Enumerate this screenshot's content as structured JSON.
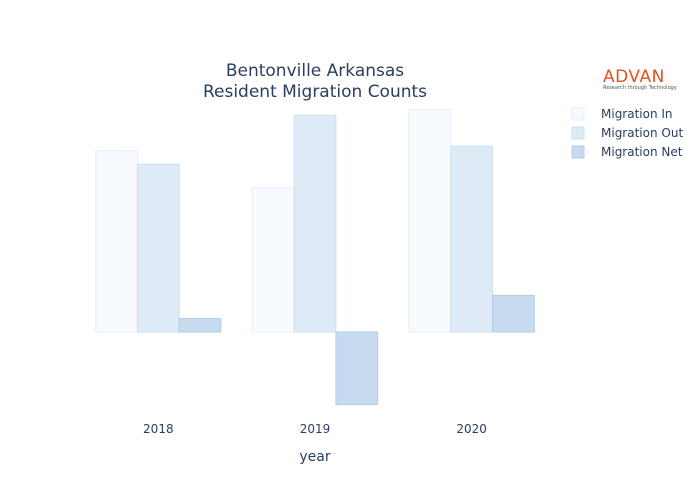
{
  "logo": {
    "name": "ADVAN",
    "tagline": "Research through Technology",
    "color": "#e2531e"
  },
  "chart_data": {
    "type": "bar",
    "title_lines": [
      "Bentonville Arkansas",
      "Resident Migration Counts"
    ],
    "xlabel": "year",
    "ylabel": "",
    "categories": [
      "2018",
      "2019",
      "2020"
    ],
    "series": [
      {
        "name": "Migration In",
        "values": [
          500,
          398,
          614
        ],
        "color": "#f7fbff",
        "stroke": "#e6eef8"
      },
      {
        "name": "Migration Out",
        "values": [
          463,
          598,
          513
        ],
        "color": "#deebf7",
        "stroke": "#cfdff0"
      },
      {
        "name": "Migration Net",
        "values": [
          37,
          -200,
          101
        ],
        "color": "#c6dbef",
        "stroke": "#b6cde6"
      }
    ],
    "ylim": [
      -215,
      640
    ],
    "grid": false,
    "show_y_ticks": false,
    "legend_position": "top-right"
  }
}
